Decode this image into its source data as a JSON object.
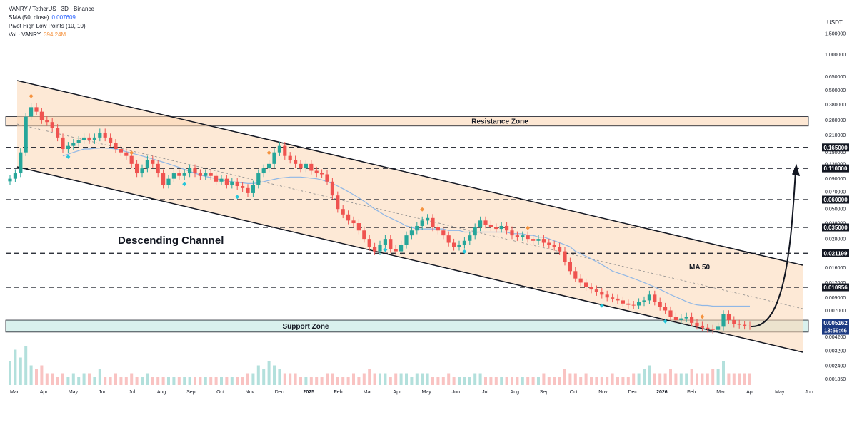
{
  "header": {
    "symbol_line": "VANRY / TetherUS · 3D · Binance",
    "sma_label": "SMA (50, close)",
    "sma_value": "0.007609",
    "pivot_label": "Pivot High Low Points (10, 10)",
    "vol_label": "Vol · VANRY",
    "vol_value": "394.24M"
  },
  "colors": {
    "up": "#26a69a",
    "down": "#ef5350",
    "channel_fill": "#fbd7b5",
    "support_fill": "#cfeee9",
    "ma": "#8fb7e6",
    "pivot_high": "#f5923e",
    "pivot_low": "#26c6da",
    "price_box": "#1c3a82"
  },
  "chart_data": {
    "type": "candlestick",
    "unit": "USDT",
    "y_scale": "log",
    "y_ticks": [
      "1.500000",
      "1.000000",
      "0.650000",
      "0.500000",
      "0.380000",
      "0.280000",
      "0.210000",
      "0.150000",
      "0.120000",
      "0.090000",
      "0.070000",
      "0.050000",
      "0.038000",
      "0.028000",
      "0.016000",
      "0.012000",
      "0.009000",
      "0.007000",
      "0.005000",
      "0.004200",
      "0.003200",
      "0.002400",
      "0.001850"
    ],
    "y_tick_values": [
      1.5,
      1.0,
      0.65,
      0.5,
      0.38,
      0.28,
      0.21,
      0.15,
      0.12,
      0.09,
      0.07,
      0.05,
      0.038,
      0.028,
      0.016,
      0.012,
      0.009,
      0.007,
      0.005,
      0.0042,
      0.0032,
      0.0024,
      0.00185
    ],
    "x_ticks": [
      {
        "label": "Mar",
        "bold": false
      },
      {
        "label": "Apr",
        "bold": false
      },
      {
        "label": "May",
        "bold": false
      },
      {
        "label": "Jun",
        "bold": false
      },
      {
        "label": "Jul",
        "bold": false
      },
      {
        "label": "Aug",
        "bold": false
      },
      {
        "label": "Sep",
        "bold": false
      },
      {
        "label": "Oct",
        "bold": false
      },
      {
        "label": "Nov",
        "bold": false
      },
      {
        "label": "Dec",
        "bold": false
      },
      {
        "label": "2025",
        "bold": true
      },
      {
        "label": "Feb",
        "bold": false
      },
      {
        "label": "Mar",
        "bold": false
      },
      {
        "label": "Apr",
        "bold": false
      },
      {
        "label": "May",
        "bold": false
      },
      {
        "label": "Jun",
        "bold": false
      },
      {
        "label": "Jul",
        "bold": false
      },
      {
        "label": "Aug",
        "bold": false
      },
      {
        "label": "Sep",
        "bold": false
      },
      {
        "label": "Oct",
        "bold": false
      },
      {
        "label": "Nov",
        "bold": false
      },
      {
        "label": "Dec",
        "bold": false
      },
      {
        "label": "2026",
        "bold": true
      },
      {
        "label": "Feb",
        "bold": false
      },
      {
        "label": "Mar",
        "bold": false
      },
      {
        "label": "Apr",
        "bold": false
      },
      {
        "label": "May",
        "bold": false
      },
      {
        "label": "Jun",
        "bold": false
      }
    ],
    "price_levels": [
      "0.165000",
      "0.110000",
      "0.060000",
      "0.035000",
      "0.021199",
      "0.010956"
    ],
    "price_level_values": [
      0.165,
      0.11,
      0.06,
      0.035,
      0.021199,
      0.010956
    ],
    "resistance_zone": {
      "label": "Resistance Zone",
      "low": 0.25,
      "high": 0.3
    },
    "support_zone": {
      "label": "Support Zone",
      "low": 0.0046,
      "high": 0.0058
    },
    "current_price": "0.005162",
    "countdown": "13:59:46",
    "annotations": {
      "channel": "Descending Channel",
      "ma": "MA 50"
    },
    "closes": [
      0.09,
      0.1,
      0.15,
      0.3,
      0.36,
      0.33,
      0.28,
      0.27,
      0.24,
      0.2,
      0.16,
      0.17,
      0.18,
      0.19,
      0.2,
      0.19,
      0.2,
      0.22,
      0.2,
      0.18,
      0.16,
      0.15,
      0.14,
      0.12,
      0.1,
      0.11,
      0.13,
      0.12,
      0.1,
      0.08,
      0.09,
      0.1,
      0.095,
      0.1,
      0.11,
      0.1,
      0.095,
      0.1,
      0.095,
      0.085,
      0.09,
      0.08,
      0.085,
      0.078,
      0.075,
      0.068,
      0.08,
      0.1,
      0.11,
      0.12,
      0.15,
      0.17,
      0.14,
      0.13,
      0.12,
      0.11,
      0.12,
      0.105,
      0.1,
      0.098,
      0.085,
      0.065,
      0.05,
      0.045,
      0.04,
      0.038,
      0.033,
      0.028,
      0.024,
      0.022,
      0.025,
      0.028,
      0.023,
      0.022,
      0.025,
      0.03,
      0.033,
      0.036,
      0.04,
      0.042,
      0.035,
      0.033,
      0.03,
      0.026,
      0.024,
      0.025,
      0.027,
      0.03,
      0.035,
      0.04,
      0.037,
      0.035,
      0.034,
      0.036,
      0.033,
      0.03,
      0.029,
      0.03,
      0.028,
      0.027,
      0.028,
      0.026,
      0.025,
      0.024,
      0.022,
      0.018,
      0.015,
      0.013,
      0.012,
      0.011,
      0.0105,
      0.01,
      0.0095,
      0.009,
      0.0088,
      0.0085,
      0.008,
      0.0078,
      0.0077,
      0.0082,
      0.0085,
      0.0095,
      0.0083,
      0.0075,
      0.007,
      0.0062,
      0.0058,
      0.006,
      0.0062,
      0.0055,
      0.0052,
      0.005,
      0.0049,
      0.0048,
      0.0051,
      0.0065,
      0.0058,
      0.0054,
      0.0053,
      0.0052,
      0.00516
    ],
    "ma50": [
      null,
      null,
      null,
      null,
      null,
      null,
      null,
      null,
      null,
      null,
      0.14,
      0.145,
      0.15,
      0.155,
      0.16,
      0.16,
      0.162,
      0.163,
      0.163,
      0.162,
      0.16,
      0.156,
      0.152,
      0.148,
      0.144,
      0.14,
      0.136,
      0.132,
      0.128,
      0.124,
      0.12,
      0.116,
      0.112,
      0.108,
      0.104,
      0.1,
      0.097,
      0.094,
      0.092,
      0.09,
      0.088,
      0.086,
      0.085,
      0.084,
      0.083,
      0.082,
      0.082,
      0.083,
      0.085,
      0.087,
      0.089,
      0.091,
      0.092,
      0.093,
      0.093,
      0.093,
      0.092,
      0.091,
      0.09,
      0.088,
      0.085,
      0.082,
      0.078,
      0.074,
      0.07,
      0.066,
      0.062,
      0.058,
      0.054,
      0.05,
      0.047,
      0.044,
      0.042,
      0.04,
      0.038,
      0.036,
      0.035,
      0.034,
      0.034,
      0.034,
      0.034,
      0.034,
      0.034,
      0.033,
      0.033,
      0.033,
      0.032,
      0.032,
      0.032,
      0.032,
      0.032,
      0.032,
      0.032,
      0.032,
      0.032,
      0.031,
      0.031,
      0.031,
      0.03,
      0.03,
      0.029,
      0.029,
      0.028,
      0.027,
      0.026,
      0.025,
      0.024,
      0.022,
      0.021,
      0.02,
      0.019,
      0.018,
      0.017,
      0.016,
      0.015,
      0.0145,
      0.014,
      0.0135,
      0.013,
      0.0125,
      0.012,
      0.0115,
      0.011,
      0.0105,
      0.01,
      0.0095,
      0.0091,
      0.0087,
      0.0083,
      0.008,
      0.0078,
      0.0077,
      0.0077,
      0.0076,
      0.0076,
      0.0076,
      0.0076,
      0.0076,
      0.0076,
      0.0076,
      0.0076
    ],
    "volume_relative": [
      0.6,
      0.9,
      0.7,
      1.0,
      0.5,
      0.4,
      0.5,
      0.3,
      0.3,
      0.2,
      0.3,
      0.2,
      0.3,
      0.2,
      0.3,
      0.3,
      0.2,
      0.4,
      0.2,
      0.2,
      0.3,
      0.2,
      0.2,
      0.3,
      0.2,
      0.2,
      0.3,
      0.2,
      0.2,
      0.2,
      0.2,
      0.2,
      0.2,
      0.2,
      0.2,
      0.2,
      0.2,
      0.2,
      0.2,
      0.2,
      0.2,
      0.2,
      0.2,
      0.2,
      0.2,
      0.3,
      0.3,
      0.5,
      0.4,
      0.6,
      0.5,
      0.4,
      0.3,
      0.3,
      0.3,
      0.2,
      0.2,
      0.2,
      0.2,
      0.2,
      0.3,
      0.3,
      0.2,
      0.2,
      0.2,
      0.3,
      0.2,
      0.3,
      0.4,
      0.3,
      0.3,
      0.3,
      0.2,
      0.3,
      0.3,
      0.3,
      0.2,
      0.3,
      0.3,
      0.3,
      0.2,
      0.2,
      0.2,
      0.3,
      0.2,
      0.2,
      0.2,
      0.2,
      0.3,
      0.3,
      0.2,
      0.2,
      0.2,
      0.2,
      0.2,
      0.2,
      0.2,
      0.2,
      0.2,
      0.2,
      0.2,
      0.3,
      0.2,
      0.2,
      0.2,
      0.4,
      0.3,
      0.3,
      0.2,
      0.3,
      0.2,
      0.2,
      0.2,
      0.2,
      0.3,
      0.2,
      0.2,
      0.2,
      0.3,
      0.3,
      0.4,
      0.5,
      0.3,
      0.3,
      0.3,
      0.4,
      0.3,
      0.3,
      0.3,
      0.4,
      0.3,
      0.3,
      0.3,
      0.4,
      0.4,
      0.6,
      0.3,
      0.3,
      0.3,
      0.3,
      0.3
    ],
    "pivot_highs": [
      4,
      23,
      49,
      78,
      98,
      131
    ],
    "pivot_lows": [
      11,
      33,
      43,
      71,
      86,
      112,
      124
    ]
  }
}
